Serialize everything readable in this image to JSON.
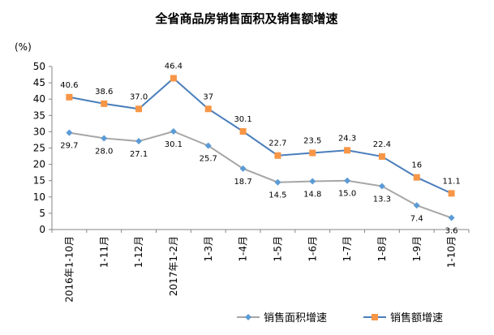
{
  "chart_data": {
    "type": "line",
    "title": "全省商品房销售面积及销售额增速",
    "ylabel": "(%)",
    "ylim": [
      0,
      50
    ],
    "yticks": [
      0,
      5,
      10,
      15,
      20,
      25,
      30,
      35,
      40,
      45,
      50
    ],
    "grid": false,
    "legend": "bottom-right",
    "categories": [
      "2016年1-10月",
      "1-11月",
      "1-12月",
      "2017年1-2月",
      "1-3月",
      "1-4月",
      "1-5月",
      "1-6月",
      "1-7月",
      "1-8月",
      "1-9月",
      "1-10月"
    ],
    "series": [
      {
        "name": "销售面积增速",
        "color": "#a6a6a6",
        "marker": "diamond",
        "marker_color": "#5b9bd5",
        "values": [
          29.7,
          28.0,
          27.1,
          30.1,
          25.7,
          18.7,
          14.5,
          14.8,
          15.0,
          13.3,
          7.4,
          3.6
        ],
        "labels": [
          "29.7",
          "28.0",
          "27.1",
          "30.1",
          "25.7",
          "18.7",
          "14.5",
          "14.8",
          "15.0",
          "13.3",
          "7.4",
          "3.6"
        ]
      },
      {
        "name": "销售额增速",
        "color": "#4a7ebb",
        "marker": "square",
        "marker_color": "#f79646",
        "values": [
          40.6,
          38.6,
          37.0,
          46.4,
          37.0,
          30.1,
          22.7,
          23.5,
          24.3,
          22.4,
          16.0,
          11.1
        ],
        "labels": [
          "40.6",
          "38.6",
          "37.0",
          "46.4",
          "37",
          "30.1",
          "22.7",
          "23.5",
          "24.3",
          "22.4",
          "16",
          "11.1"
        ]
      }
    ]
  }
}
